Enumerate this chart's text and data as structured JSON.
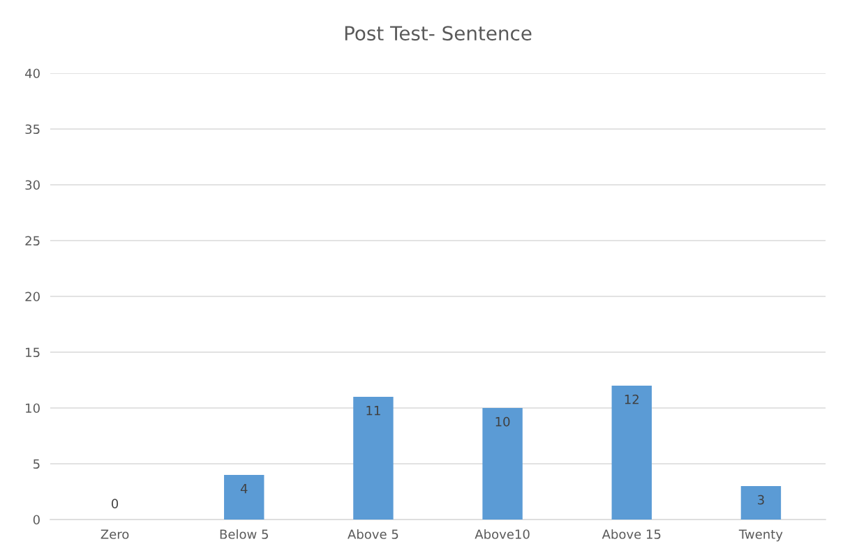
{
  "chart_data": {
    "type": "bar",
    "title": "Post Test- Sentence",
    "categories": [
      "Zero",
      "Below 5",
      "Above 5",
      "Above10",
      "Above 15",
      "Twenty"
    ],
    "values": [
      0,
      4,
      11,
      10,
      12,
      3
    ],
    "color": "#5b9bd5",
    "ylim": [
      0,
      40
    ],
    "yticks": [
      0,
      5,
      10,
      15,
      20,
      25,
      30,
      35,
      40
    ],
    "grid": "y",
    "data_labels": true,
    "legend": false
  }
}
